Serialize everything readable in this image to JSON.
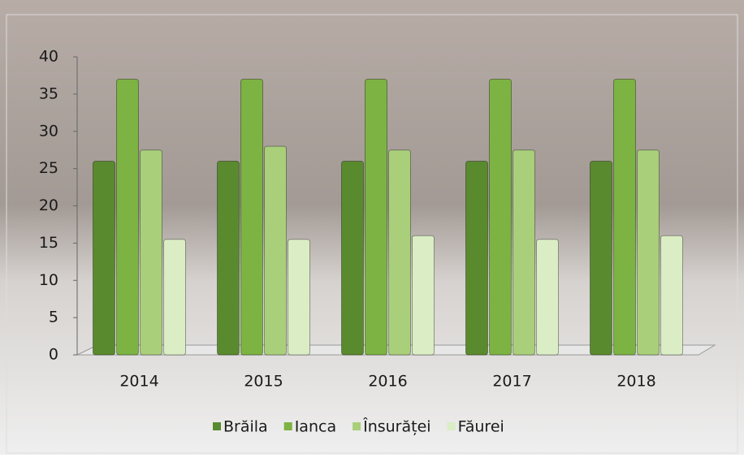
{
  "chart_data": {
    "type": "bar",
    "categories": [
      "2014",
      "2015",
      "2016",
      "2017",
      "2018"
    ],
    "series": [
      {
        "name": "Brăila",
        "color": "#5a8a2e",
        "values": [
          26,
          26,
          26,
          26,
          26
        ]
      },
      {
        "name": "Ianca",
        "color": "#7cb342",
        "values": [
          37,
          37,
          37,
          37,
          37
        ]
      },
      {
        "name": "Însurăței",
        "color": "#a9cf7a",
        "values": [
          27.5,
          28,
          27.5,
          27.5,
          27.5
        ]
      },
      {
        "name": "Făurei",
        "color": "#daedc4",
        "values": [
          15.5,
          15.5,
          16,
          15.5,
          16
        ]
      }
    ],
    "ylim": [
      0,
      40
    ],
    "yticks": [
      0,
      5,
      10,
      15,
      20,
      25,
      30,
      35,
      40
    ],
    "grid": false
  }
}
